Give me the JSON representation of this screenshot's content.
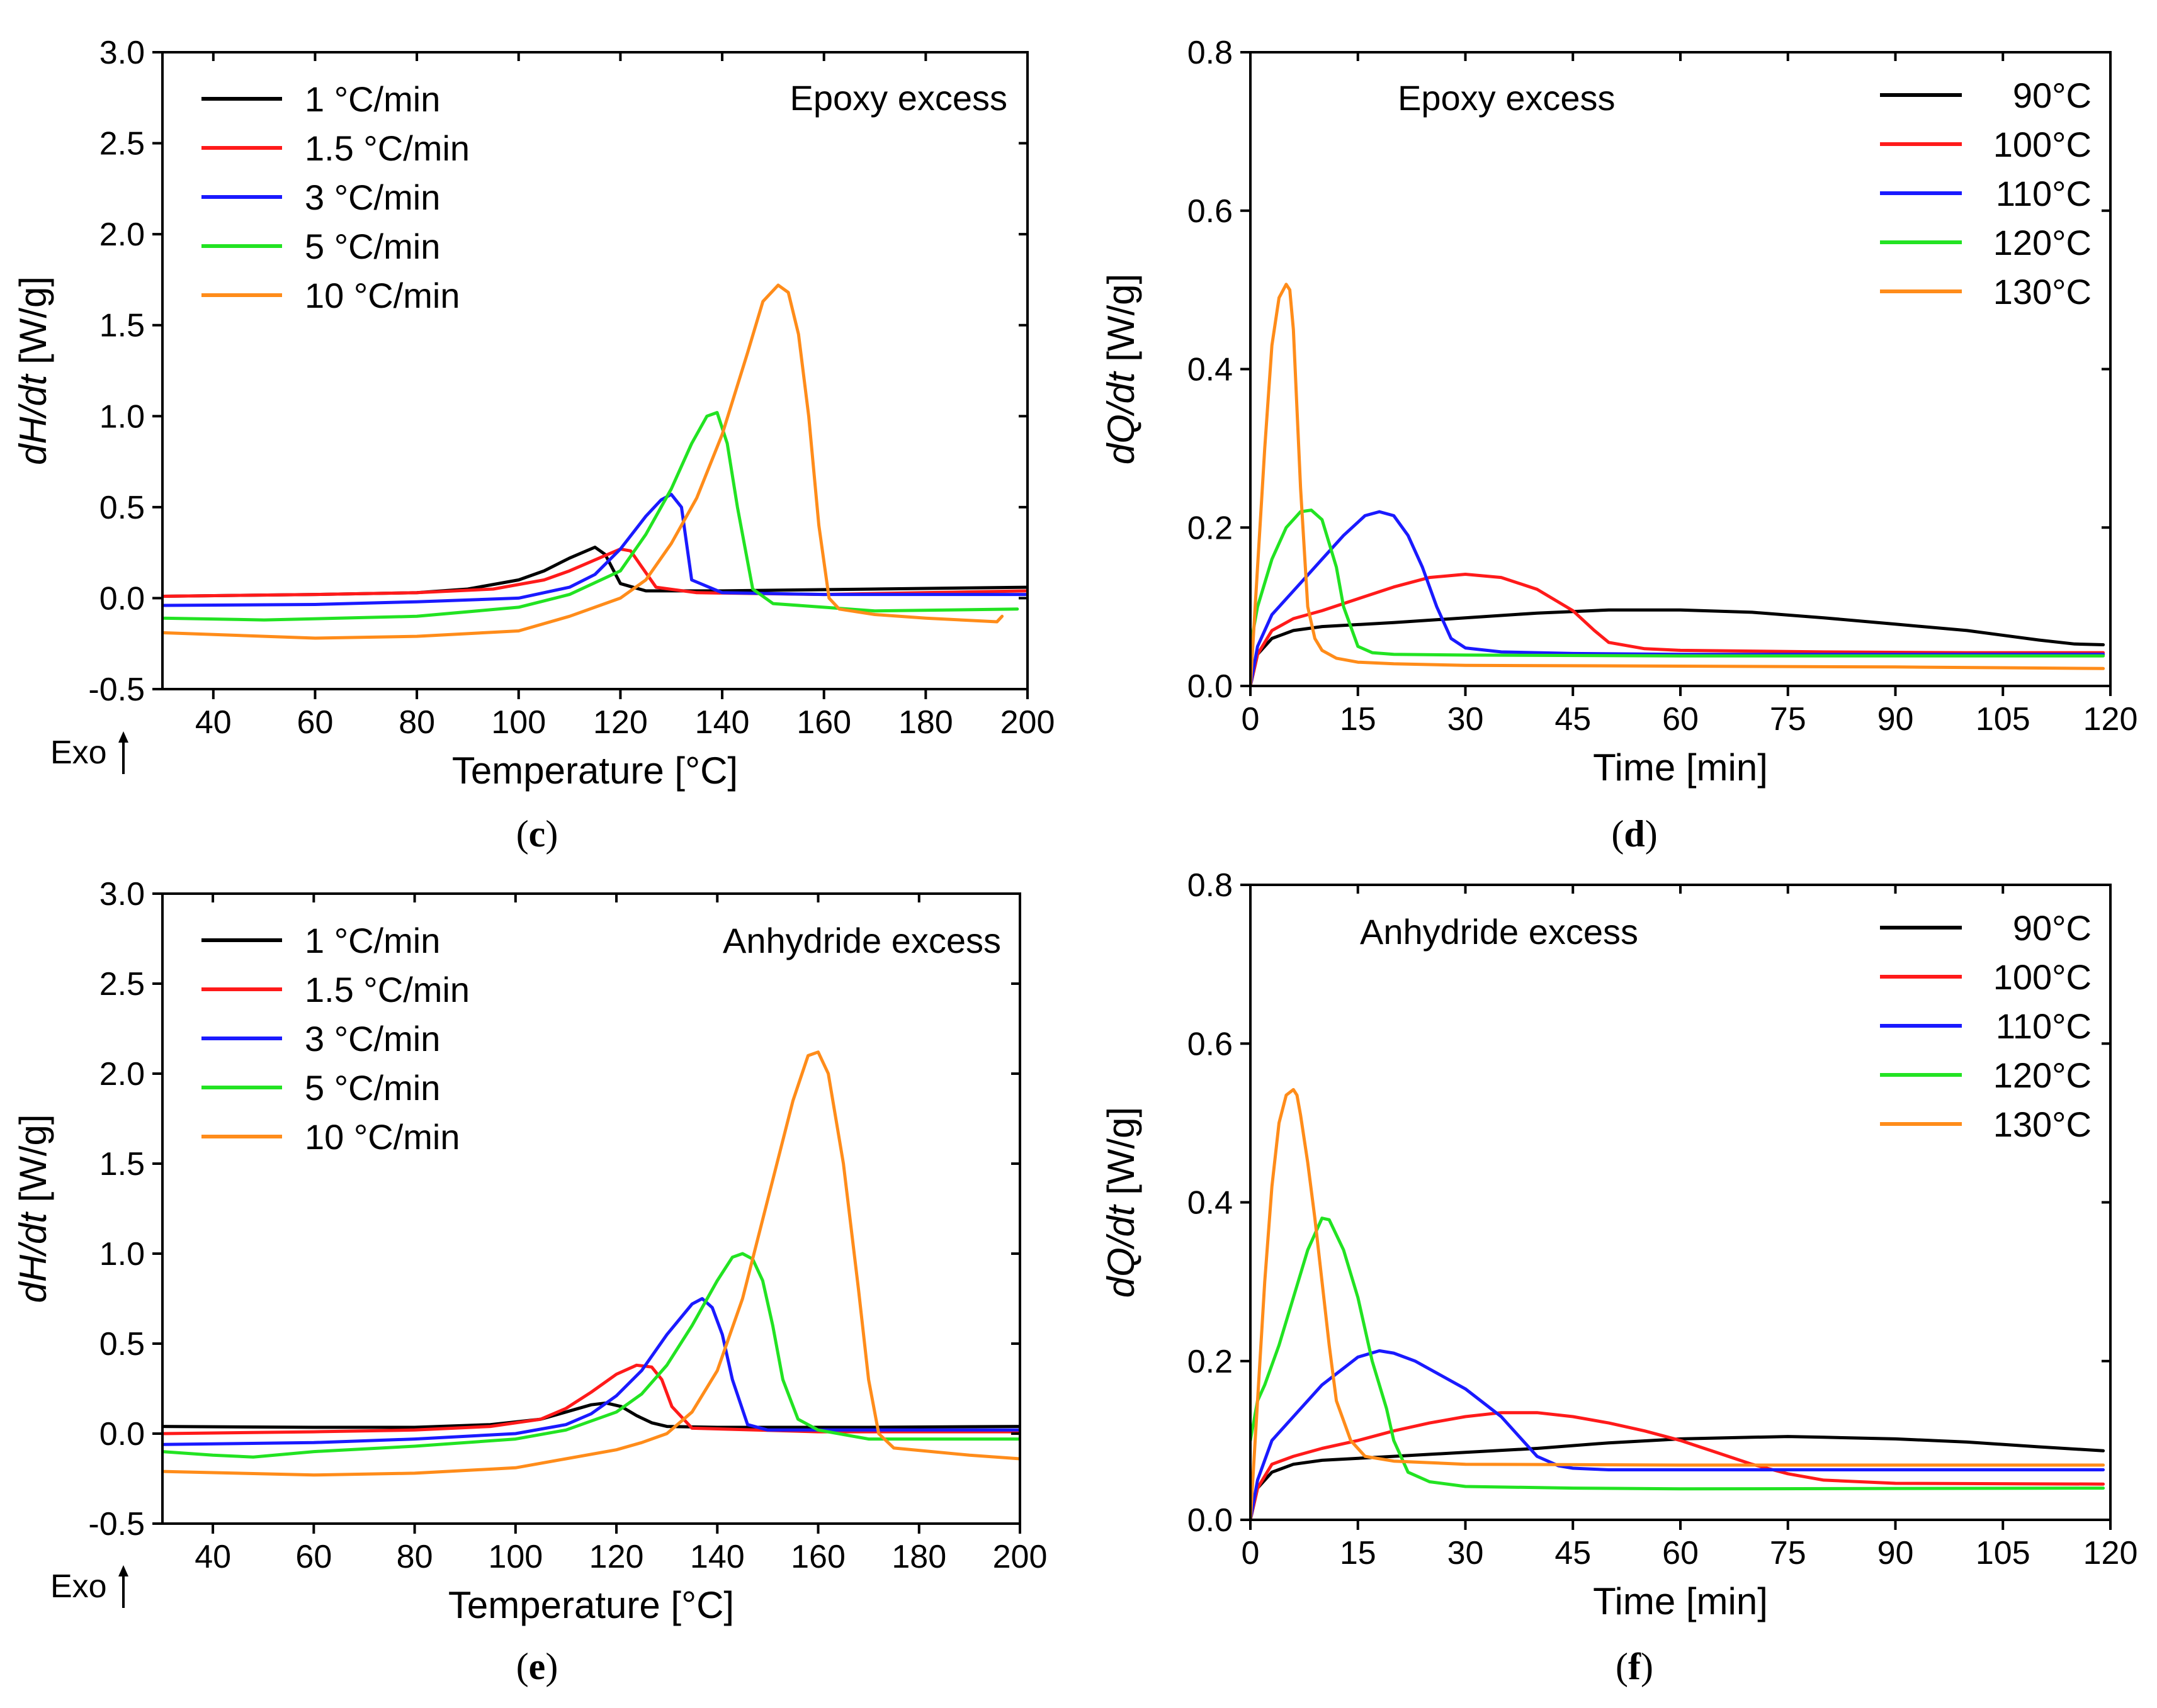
{
  "figure": {
    "panels": [
      {
        "id": "c",
        "label_open": "(",
        "label_letter": "c",
        "label_close": ")"
      },
      {
        "id": "d",
        "label_open": "(",
        "label_letter": "d",
        "label_close": ")"
      },
      {
        "id": "e",
        "label_open": "(",
        "label_letter": "e",
        "label_close": ")"
      },
      {
        "id": "f",
        "label_open": "(",
        "label_letter": "f",
        "label_close": ")"
      }
    ],
    "exo_label": "Exo"
  },
  "colors": {
    "black": "#000000",
    "red": "#ff1a1a",
    "blue": "#1a1aff",
    "green": "#22e322",
    "orange": "#ff8c1a"
  },
  "chart_data": [
    {
      "id": "c",
      "type": "line",
      "title": "",
      "annotation": "Epoxy excess",
      "xlabel": "Temperature [°C]",
      "ylabel_italic": "dH/dt",
      "ylabel_unit": " [W/g]",
      "xlim": [
        30,
        200
      ],
      "ylim": [
        -0.5,
        3.0
      ],
      "xticks": [
        40,
        60,
        80,
        100,
        120,
        140,
        160,
        180,
        200
      ],
      "yticks": [
        -0.5,
        0.0,
        0.5,
        1.0,
        1.5,
        2.0,
        2.5,
        3.0
      ],
      "ytick_labels": [
        "-0.5",
        "0.0",
        "0.5",
        "1.0",
        "1.5",
        "2.0",
        "2.5",
        "3.0"
      ],
      "legend_position": "top-left",
      "series": [
        {
          "name": "1 °C/min",
          "color": "black",
          "x": [
            30,
            60,
            80,
            90,
            100,
            105,
            110,
            115,
            117,
            120,
            125,
            140,
            170,
            200
          ],
          "y": [
            0.01,
            0.02,
            0.03,
            0.05,
            0.1,
            0.15,
            0.22,
            0.28,
            0.24,
            0.08,
            0.04,
            0.04,
            0.05,
            0.06
          ]
        },
        {
          "name": "1.5 °C/min",
          "color": "red",
          "x": [
            30,
            60,
            80,
            95,
            105,
            110,
            115,
            120,
            122,
            124,
            127,
            135,
            160,
            200
          ],
          "y": [
            0.01,
            0.02,
            0.03,
            0.05,
            0.1,
            0.15,
            0.21,
            0.27,
            0.26,
            0.18,
            0.06,
            0.03,
            0.02,
            0.04
          ]
        },
        {
          "name": "3 °C/min",
          "color": "blue",
          "x": [
            30,
            60,
            80,
            100,
            110,
            115,
            120,
            125,
            128,
            130,
            132,
            134,
            140,
            160,
            200
          ],
          "y": [
            -0.04,
            -0.035,
            -0.02,
            0.0,
            0.06,
            0.13,
            0.27,
            0.45,
            0.54,
            0.57,
            0.5,
            0.1,
            0.03,
            0.02,
            0.02
          ]
        },
        {
          "name": "5 °C/min",
          "color": "green",
          "x": [
            30,
            50,
            80,
            100,
            110,
            120,
            125,
            130,
            134,
            137,
            139,
            141,
            143,
            146,
            150,
            170,
            198
          ],
          "y": [
            -0.11,
            -0.12,
            -0.1,
            -0.05,
            0.02,
            0.15,
            0.35,
            0.6,
            0.85,
            1.0,
            1.02,
            0.85,
            0.5,
            0.05,
            -0.03,
            -0.07,
            -0.06
          ]
        },
        {
          "name": "10 °C/min",
          "color": "orange",
          "x": [
            30,
            60,
            80,
            100,
            110,
            120,
            125,
            130,
            135,
            140,
            145,
            148,
            151,
            153,
            155,
            157,
            159,
            161,
            163,
            170,
            180,
            194,
            195
          ],
          "y": [
            -0.19,
            -0.22,
            -0.21,
            -0.18,
            -0.1,
            0.0,
            0.1,
            0.3,
            0.55,
            0.9,
            1.35,
            1.63,
            1.72,
            1.68,
            1.45,
            1.0,
            0.4,
            0.0,
            -0.06,
            -0.09,
            -0.11,
            -0.13,
            -0.1
          ]
        }
      ]
    },
    {
      "id": "d",
      "type": "line",
      "title": "",
      "annotation": "Epoxy excess",
      "xlabel": "Time [min]",
      "ylabel_italic": "dQ/dt",
      "ylabel_unit": " [W/g]",
      "xlim": [
        0,
        120
      ],
      "ylim": [
        0,
        0.8
      ],
      "xticks": [
        0,
        15,
        30,
        45,
        60,
        75,
        90,
        105,
        120
      ],
      "yticks": [
        0.0,
        0.2,
        0.4,
        0.6,
        0.8
      ],
      "ytick_labels": [
        "0.0",
        "0.2",
        "0.4",
        "0.6",
        "0.8"
      ],
      "legend_position": "top-right",
      "series": [
        {
          "name": "90°C",
          "color": "black",
          "x": [
            0,
            1,
            3,
            6,
            10,
            20,
            30,
            40,
            50,
            60,
            70,
            80,
            90,
            100,
            110,
            115,
            119
          ],
          "y": [
            0.0,
            0.04,
            0.06,
            0.07,
            0.075,
            0.08,
            0.086,
            0.092,
            0.096,
            0.096,
            0.093,
            0.086,
            0.078,
            0.07,
            0.058,
            0.053,
            0.052
          ]
        },
        {
          "name": "100°C",
          "color": "red",
          "x": [
            0,
            1,
            3,
            6,
            10,
            15,
            20,
            25,
            30,
            35,
            40,
            45,
            48,
            50,
            55,
            60,
            80,
            100,
            119
          ],
          "y": [
            0.0,
            0.04,
            0.07,
            0.085,
            0.095,
            0.11,
            0.125,
            0.137,
            0.141,
            0.137,
            0.122,
            0.095,
            0.07,
            0.055,
            0.047,
            0.045,
            0.043,
            0.042,
            0.042
          ]
        },
        {
          "name": "110°C",
          "color": "blue",
          "x": [
            0,
            1,
            3,
            6,
            10,
            13,
            16,
            18,
            20,
            22,
            24,
            26,
            28,
            30,
            35,
            45,
            60,
            90,
            119
          ],
          "y": [
            0.0,
            0.05,
            0.09,
            0.12,
            0.16,
            0.19,
            0.215,
            0.22,
            0.215,
            0.19,
            0.15,
            0.1,
            0.06,
            0.048,
            0.043,
            0.041,
            0.04,
            0.04,
            0.04
          ]
        },
        {
          "name": "120°C",
          "color": "green",
          "x": [
            0,
            1,
            3,
            5,
            7,
            8.5,
            10,
            12,
            13,
            15,
            17,
            20,
            30,
            60,
            119
          ],
          "y": [
            0.05,
            0.1,
            0.16,
            0.2,
            0.22,
            0.222,
            0.21,
            0.15,
            0.1,
            0.05,
            0.042,
            0.04,
            0.039,
            0.038,
            0.038
          ]
        },
        {
          "name": "130°C",
          "color": "orange",
          "x": [
            0,
            1,
            2,
            3,
            4,
            5,
            5.5,
            6,
            7,
            8,
            9,
            10,
            12,
            15,
            20,
            30,
            60,
            90,
            119
          ],
          "y": [
            0.0,
            0.15,
            0.3,
            0.43,
            0.49,
            0.507,
            0.5,
            0.45,
            0.25,
            0.1,
            0.06,
            0.045,
            0.035,
            0.03,
            0.028,
            0.026,
            0.025,
            0.024,
            0.022
          ]
        }
      ]
    },
    {
      "id": "e",
      "type": "line",
      "title": "",
      "annotation": "Anhydride excess",
      "xlabel": "Temperature [°C]",
      "ylabel_italic": "dH/dt",
      "ylabel_unit": " [W/g]",
      "xlim": [
        30,
        200
      ],
      "ylim": [
        -0.5,
        3.0
      ],
      "xticks": [
        40,
        60,
        80,
        100,
        120,
        140,
        160,
        180,
        200
      ],
      "yticks": [
        -0.5,
        0.0,
        0.5,
        1.0,
        1.5,
        2.0,
        2.5,
        3.0
      ],
      "ytick_labels": [
        "-0.5",
        "0.0",
        "0.5",
        "1.0",
        "1.5",
        "2.0",
        "2.5",
        "3.0"
      ],
      "legend_position": "top-left",
      "series": [
        {
          "name": "1 °C/min",
          "color": "black",
          "x": [
            30,
            60,
            80,
            95,
            105,
            110,
            115,
            118,
            121,
            124,
            127,
            130,
            140,
            170,
            200
          ],
          "y": [
            0.04,
            0.035,
            0.035,
            0.05,
            0.08,
            0.12,
            0.16,
            0.17,
            0.15,
            0.1,
            0.06,
            0.04,
            0.035,
            0.035,
            0.04
          ]
        },
        {
          "name": "1.5 °C/min",
          "color": "red",
          "x": [
            30,
            60,
            80,
            95,
            105,
            110,
            115,
            120,
            124,
            127,
            129,
            131,
            135,
            160,
            200
          ],
          "y": [
            0.0,
            0.01,
            0.02,
            0.04,
            0.08,
            0.14,
            0.23,
            0.33,
            0.38,
            0.37,
            0.3,
            0.15,
            0.03,
            0.01,
            0.01
          ]
        },
        {
          "name": "3 °C/min",
          "color": "blue",
          "x": [
            30,
            60,
            80,
            100,
            110,
            115,
            120,
            125,
            130,
            135,
            137,
            139,
            141,
            143,
            146,
            150,
            170,
            200
          ],
          "y": [
            -0.06,
            -0.05,
            -0.03,
            0.0,
            0.05,
            0.11,
            0.21,
            0.35,
            0.55,
            0.72,
            0.75,
            0.7,
            0.55,
            0.3,
            0.05,
            0.02,
            0.02,
            0.02
          ]
        },
        {
          "name": "5 °C/min",
          "color": "green",
          "x": [
            30,
            40,
            48,
            60,
            80,
            100,
            110,
            120,
            125,
            130,
            135,
            140,
            143,
            145,
            147,
            149,
            151,
            153,
            156,
            160,
            170,
            200
          ],
          "y": [
            -0.1,
            -0.12,
            -0.13,
            -0.1,
            -0.07,
            -0.03,
            0.02,
            0.12,
            0.22,
            0.38,
            0.6,
            0.85,
            0.98,
            1.0,
            0.97,
            0.85,
            0.6,
            0.3,
            0.08,
            0.02,
            -0.03,
            -0.03
          ]
        },
        {
          "name": "10 °C/min",
          "color": "orange",
          "x": [
            30,
            60,
            80,
            100,
            110,
            120,
            125,
            130,
            135,
            140,
            145,
            150,
            155,
            158,
            160,
            162,
            165,
            168,
            170,
            172,
            175,
            190,
            200
          ],
          "y": [
            -0.21,
            -0.23,
            -0.22,
            -0.19,
            -0.14,
            -0.09,
            -0.05,
            0.0,
            0.12,
            0.35,
            0.75,
            1.3,
            1.85,
            2.1,
            2.12,
            2.0,
            1.5,
            0.8,
            0.3,
            0.0,
            -0.08,
            -0.12,
            -0.14
          ]
        }
      ]
    },
    {
      "id": "f",
      "type": "line",
      "title": "",
      "annotation": "Anhydride excess",
      "xlabel": "Time [min]",
      "ylabel_italic": "dQ/dt",
      "ylabel_unit": " [W/g]",
      "xlim": [
        0,
        120
      ],
      "ylim": [
        0,
        0.8
      ],
      "xticks": [
        0,
        15,
        30,
        45,
        60,
        75,
        90,
        105,
        120
      ],
      "yticks": [
        0.0,
        0.2,
        0.4,
        0.6,
        0.8
      ],
      "ytick_labels": [
        "0.0",
        "0.2",
        "0.4",
        "0.6",
        "0.8"
      ],
      "legend_position": "top-right",
      "series": [
        {
          "name": "90°C",
          "color": "black",
          "x": [
            0,
            1,
            3,
            6,
            10,
            20,
            30,
            40,
            50,
            60,
            70,
            75,
            80,
            90,
            100,
            110,
            119
          ],
          "y": [
            0.0,
            0.04,
            0.06,
            0.07,
            0.075,
            0.08,
            0.085,
            0.09,
            0.097,
            0.102,
            0.104,
            0.105,
            0.104,
            0.102,
            0.098,
            0.092,
            0.087
          ]
        },
        {
          "name": "100°C",
          "color": "red",
          "x": [
            0,
            1,
            3,
            6,
            10,
            15,
            20,
            25,
            30,
            35,
            40,
            45,
            50,
            55,
            60,
            65,
            70,
            75,
            80,
            90,
            119
          ],
          "y": [
            0.0,
            0.04,
            0.07,
            0.08,
            0.09,
            0.1,
            0.112,
            0.122,
            0.13,
            0.135,
            0.135,
            0.13,
            0.122,
            0.112,
            0.1,
            0.085,
            0.07,
            0.058,
            0.05,
            0.046,
            0.045
          ]
        },
        {
          "name": "110°C",
          "color": "blue",
          "x": [
            0,
            1,
            3,
            6,
            10,
            15,
            18,
            20,
            23,
            25,
            30,
            35,
            38,
            40,
            43,
            45,
            50,
            60,
            90,
            119
          ],
          "y": [
            0.0,
            0.05,
            0.1,
            0.13,
            0.17,
            0.205,
            0.213,
            0.21,
            0.2,
            0.19,
            0.165,
            0.13,
            0.1,
            0.08,
            0.068,
            0.065,
            0.063,
            0.063,
            0.063,
            0.063
          ]
        },
        {
          "name": "120°C",
          "color": "green",
          "x": [
            0,
            1,
            2,
            4,
            6,
            8,
            10,
            11,
            13,
            15,
            17,
            19,
            20,
            22,
            25,
            30,
            45,
            60,
            119
          ],
          "y": [
            0.1,
            0.15,
            0.17,
            0.22,
            0.28,
            0.34,
            0.38,
            0.378,
            0.34,
            0.28,
            0.2,
            0.14,
            0.1,
            0.06,
            0.048,
            0.042,
            0.04,
            0.039,
            0.04
          ]
        },
        {
          "name": "130°C",
          "color": "orange",
          "x": [
            0,
            1,
            2,
            3,
            4,
            5,
            6,
            6.5,
            7,
            8,
            9,
            10,
            11,
            12,
            14,
            16,
            20,
            30,
            60,
            90,
            119
          ],
          "y": [
            0.0,
            0.15,
            0.3,
            0.42,
            0.5,
            0.535,
            0.542,
            0.535,
            0.51,
            0.45,
            0.38,
            0.3,
            0.22,
            0.15,
            0.1,
            0.08,
            0.074,
            0.07,
            0.069,
            0.069,
            0.069
          ]
        }
      ]
    }
  ]
}
